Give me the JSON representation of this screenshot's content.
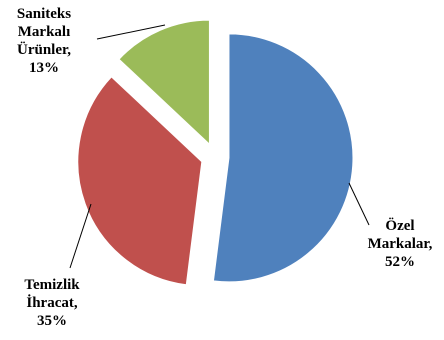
{
  "chart_data": {
    "type": "pie",
    "categories": [
      "Özel Markalar",
      "Temizlik İhracat",
      "Saniteks Markalı Ürünler"
    ],
    "values": [
      52,
      35,
      13
    ],
    "unit": "%",
    "colors": [
      "#4F81BD",
      "#C0504D",
      "#9BBB59"
    ],
    "exploded": true,
    "labels": [
      {
        "lines": [
          "Özel",
          "Markalar,",
          "52%"
        ]
      },
      {
        "lines": [
          "Temizlik",
          "İhracat,",
          "35%"
        ]
      },
      {
        "lines": [
          "Saniteks",
          "Markalı",
          "Ürünler,",
          "13%"
        ]
      }
    ],
    "legend": "none"
  }
}
